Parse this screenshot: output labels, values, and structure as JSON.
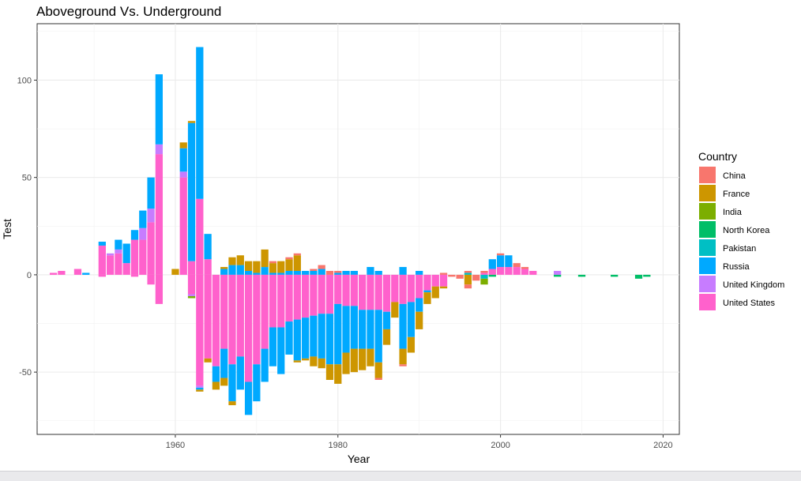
{
  "chart_data": {
    "type": "bar",
    "title": "Aboveground Vs. Underground",
    "xlabel": "Year",
    "ylabel": "Test",
    "xlim": [
      1943,
      2022
    ],
    "ylim": [
      -82,
      129
    ],
    "x_ticks": [
      1960,
      1980,
      2000,
      2020
    ],
    "y_ticks": [
      -50,
      0,
      50,
      100
    ],
    "grid": true,
    "legend": {
      "title": "Country",
      "placement": "right"
    },
    "series": [
      {
        "name": "China",
        "color": "#F8766D"
      },
      {
        "name": "France",
        "color": "#CD9600"
      },
      {
        "name": "India",
        "color": "#7CAE00"
      },
      {
        "name": "North Korea",
        "color": "#00BE67"
      },
      {
        "name": "Pakistan",
        "color": "#00BFC4"
      },
      {
        "name": "Russia",
        "color": "#00A9FF"
      },
      {
        "name": "United Kingdom",
        "color": "#C77CFF"
      },
      {
        "name": "United States",
        "color": "#FF61CC"
      }
    ],
    "above": [
      {
        "x": 1945,
        "United States": 1
      },
      {
        "x": 1946,
        "United States": 2
      },
      {
        "x": 1948,
        "United States": 3
      },
      {
        "x": 1949,
        "Russia": 1
      },
      {
        "x": 1951,
        "United States": 15,
        "Russia": 2
      },
      {
        "x": 1952,
        "United States": 10,
        "United Kingdom": 1
      },
      {
        "x": 1953,
        "United States": 11,
        "United Kingdom": 2,
        "Russia": 5
      },
      {
        "x": 1954,
        "United States": 6,
        "Russia": 10
      },
      {
        "x": 1955,
        "United States": 18,
        "Russia": 5
      },
      {
        "x": 1956,
        "United States": 18,
        "United Kingdom": 6,
        "Russia": 9
      },
      {
        "x": 1957,
        "United States": 27,
        "United Kingdom": 7,
        "Russia": 16
      },
      {
        "x": 1958,
        "United States": 62,
        "United Kingdom": 5,
        "Russia": 36
      },
      {
        "x": 1960,
        "France": 3
      },
      {
        "x": 1961,
        "United States": 50,
        "United Kingdom": 3,
        "Russia": 12,
        "France": 3
      },
      {
        "x": 1962,
        "United States": 7,
        "Russia": 71,
        "France": 1
      },
      {
        "x": 1963,
        "United States": 39,
        "Russia": 78
      },
      {
        "x": 1964,
        "United States": 8,
        "Russia": 13
      },
      {
        "x": 1966,
        "Russia": 3,
        "France": 1
      },
      {
        "x": 1967,
        "Russia": 5,
        "France": 4
      },
      {
        "x": 1968,
        "Russia": 5,
        "France": 5
      },
      {
        "x": 1969,
        "Russia": 2,
        "France": 5
      },
      {
        "x": 1970,
        "Russia": 1,
        "France": 6
      },
      {
        "x": 1971,
        "Russia": 4,
        "France": 9
      },
      {
        "x": 1972,
        "Russia": 1,
        "China": 1,
        "France": 5
      },
      {
        "x": 1973,
        "Russia": 1,
        "France": 6
      },
      {
        "x": 1974,
        "Russia": 2,
        "China": 1,
        "France": 6
      },
      {
        "x": 1975,
        "Russia": 2,
        "China": 1,
        "France": 8
      },
      {
        "x": 1976,
        "Russia": 2
      },
      {
        "x": 1977,
        "Russia": 2,
        "China": 1
      },
      {
        "x": 1978,
        "Russia": 3,
        "China": 2
      },
      {
        "x": 1979,
        "China": 2
      },
      {
        "x": 1980,
        "Russia": 1,
        "China": 1
      },
      {
        "x": 1981,
        "Russia": 2
      },
      {
        "x": 1982,
        "Russia": 2
      },
      {
        "x": 1984,
        "Russia": 4
      },
      {
        "x": 1985,
        "Russia": 2
      },
      {
        "x": 1988,
        "Russia": 4
      },
      {
        "x": 1990,
        "Russia": 2
      },
      {
        "x": 1993,
        "China": 1
      },
      {
        "x": 1996,
        "China": 1,
        "Pakistan": 1
      },
      {
        "x": 1998,
        "United States": 1,
        "China": 1
      },
      {
        "x": 1999,
        "United States": 3,
        "Russia": 5
      },
      {
        "x": 2000,
        "United States": 4,
        "Russia": 6,
        "China": 1
      },
      {
        "x": 2001,
        "United States": 4,
        "Russia": 6
      },
      {
        "x": 2002,
        "United States": 4,
        "China": 2
      },
      {
        "x": 2003,
        "United States": 3,
        "China": 1
      },
      {
        "x": 2004,
        "United States": 2
      },
      {
        "x": 2007,
        "United Kingdom": 2
      }
    ],
    "below": [
      {
        "x": 1951,
        "United States": 1
      },
      {
        "x": 1955,
        "United States": 1
      },
      {
        "x": 1957,
        "United States": 5
      },
      {
        "x": 1958,
        "United States": 15
      },
      {
        "x": 1962,
        "United States": 10,
        "United Kingdom": 1,
        "India": 1
      },
      {
        "x": 1963,
        "United States": 57,
        "Russia": 1,
        "United Kingdom": 1,
        "France": 1
      },
      {
        "x": 1964,
        "United States": 43,
        "France": 2
      },
      {
        "x": 1965,
        "United States": 47,
        "Russia": 8,
        "France": 4
      },
      {
        "x": 1966,
        "United States": 38,
        "Russia": 15,
        "France": 4
      },
      {
        "x": 1967,
        "United States": 46,
        "Russia": 19,
        "France": 2
      },
      {
        "x": 1968,
        "United States": 42,
        "Russia": 17
      },
      {
        "x": 1969,
        "United States": 55,
        "Russia": 17
      },
      {
        "x": 1970,
        "United States": 46,
        "Russia": 19
      },
      {
        "x": 1971,
        "United States": 38,
        "Russia": 17
      },
      {
        "x": 1972,
        "United States": 27,
        "Russia": 20
      },
      {
        "x": 1973,
        "United States": 27,
        "Russia": 24
      },
      {
        "x": 1974,
        "United States": 24,
        "Russia": 17
      },
      {
        "x": 1975,
        "United States": 23,
        "Russia": 21,
        "France": 1
      },
      {
        "x": 1976,
        "United States": 22,
        "Russia": 21,
        "France": 1
      },
      {
        "x": 1977,
        "United States": 21,
        "Russia": 21,
        "France": 5
      },
      {
        "x": 1978,
        "United States": 20,
        "Russia": 23,
        "France": 5
      },
      {
        "x": 1979,
        "United States": 20,
        "Russia": 26,
        "France": 8
      },
      {
        "x": 1980,
        "United States": 15,
        "Russia": 31,
        "France": 10
      },
      {
        "x": 1981,
        "United States": 16,
        "Russia": 24,
        "France": 11
      },
      {
        "x": 1982,
        "United States": 16,
        "Russia": 22,
        "France": 12
      },
      {
        "x": 1983,
        "United States": 18,
        "Russia": 20,
        "France": 11
      },
      {
        "x": 1984,
        "United States": 18,
        "Russia": 20,
        "France": 9
      },
      {
        "x": 1985,
        "United States": 18,
        "Russia": 27,
        "France": 8,
        "China": 1
      },
      {
        "x": 1986,
        "United States": 19,
        "Russia": 9,
        "France": 8
      },
      {
        "x": 1987,
        "United States": 14,
        "France": 8
      },
      {
        "x": 1988,
        "United States": 15,
        "Russia": 23,
        "France": 8,
        "China": 1
      },
      {
        "x": 1989,
        "United States": 14,
        "Russia": 18,
        "France": 8
      },
      {
        "x": 1990,
        "United States": 12,
        "Russia": 7,
        "France": 9
      },
      {
        "x": 1991,
        "United States": 8,
        "Russia": 1,
        "France": 6
      },
      {
        "x": 1992,
        "United States": 6,
        "France": 6
      },
      {
        "x": 1993,
        "United States": 6,
        "France": 1
      },
      {
        "x": 1994,
        "China": 1
      },
      {
        "x": 1995,
        "China": 2
      },
      {
        "x": 1996,
        "China": 2,
        "France": 5
      },
      {
        "x": 1997,
        "China": 3
      },
      {
        "x": 1998,
        "India": 3,
        "Pakistan": 2
      },
      {
        "x": 1999,
        "North Korea": 1
      },
      {
        "x": 2007,
        "North Korea": 1
      },
      {
        "x": 2010,
        "North Korea": 1
      },
      {
        "x": 2014,
        "North Korea": 1
      },
      {
        "x": 2017,
        "North Korea": 2
      },
      {
        "x": 2018,
        "North Korea": 1
      }
    ]
  }
}
